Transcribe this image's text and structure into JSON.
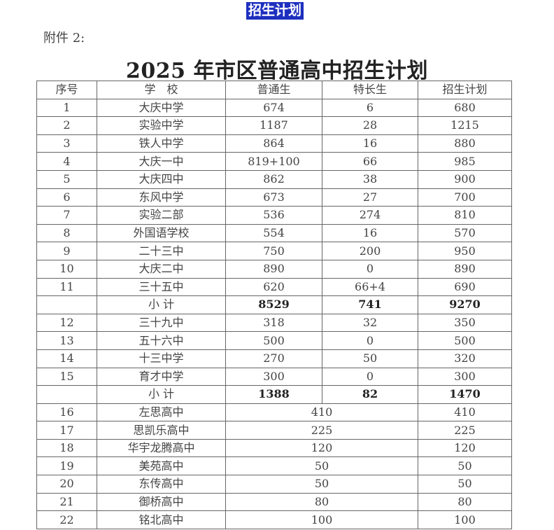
{
  "banner": "招生计划",
  "attachment_label": "附件 2:",
  "document_title": "2025 年市区普通高中招生计划",
  "table": {
    "headers": [
      "序号",
      "学　校",
      "普通生",
      "特长生",
      "招生计划"
    ],
    "rows": [
      {
        "no": "1",
        "school": "大庆中学",
        "regular": "674",
        "special": "6",
        "plan": "680"
      },
      {
        "no": "2",
        "school": "实验中学",
        "regular": "1187",
        "special": "28",
        "plan": "1215"
      },
      {
        "no": "3",
        "school": "铁人中学",
        "regular": "864",
        "special": "16",
        "plan": "880"
      },
      {
        "no": "4",
        "school": "大庆一中",
        "regular": "819+100",
        "special": "66",
        "plan": "985"
      },
      {
        "no": "5",
        "school": "大庆四中",
        "regular": "862",
        "special": "38",
        "plan": "900"
      },
      {
        "no": "6",
        "school": "东风中学",
        "regular": "673",
        "special": "27",
        "plan": "700"
      },
      {
        "no": "7",
        "school": "实验二部",
        "regular": "536",
        "special": "274",
        "plan": "810"
      },
      {
        "no": "8",
        "school": "外国语学校",
        "regular": "554",
        "special": "16",
        "plan": "570"
      },
      {
        "no": "9",
        "school": "二十三中",
        "regular": "750",
        "special": "200",
        "plan": "950"
      },
      {
        "no": "10",
        "school": "大庆二中",
        "regular": "890",
        "special": "0",
        "plan": "890"
      },
      {
        "no": "11",
        "school": "三十五中",
        "regular": "620",
        "special": "66+4",
        "plan": "690"
      },
      {
        "no": "",
        "school": "小 计",
        "regular": "8529",
        "special": "741",
        "plan": "9270",
        "subtotal": true
      },
      {
        "no": "12",
        "school": "三十九中",
        "regular": "318",
        "special": "32",
        "plan": "350"
      },
      {
        "no": "13",
        "school": "五十六中",
        "regular": "500",
        "special": "0",
        "plan": "500"
      },
      {
        "no": "14",
        "school": "十三中学",
        "regular": "270",
        "special": "50",
        "plan": "320"
      },
      {
        "no": "15",
        "school": "育才中学",
        "regular": "300",
        "special": "0",
        "plan": "300"
      },
      {
        "no": "",
        "school": "小 计",
        "regular": "1388",
        "special": "82",
        "plan": "1470",
        "subtotal": true
      },
      {
        "no": "16",
        "school": "左思高中",
        "combined": "410",
        "plan": "410"
      },
      {
        "no": "17",
        "school": "思凯乐高中",
        "combined": "225",
        "plan": "225"
      },
      {
        "no": "18",
        "school": "华宇龙腾高中",
        "combined": "120",
        "plan": "120"
      },
      {
        "no": "19",
        "school": "美苑高中",
        "combined": "50",
        "plan": "50"
      },
      {
        "no": "20",
        "school": "东传高中",
        "combined": "50",
        "plan": "50"
      },
      {
        "no": "21",
        "school": "御桥高中",
        "combined": "80",
        "plan": "80"
      },
      {
        "no": "22",
        "school": "铭北高中",
        "combined": "100",
        "plan": "100"
      }
    ]
  }
}
